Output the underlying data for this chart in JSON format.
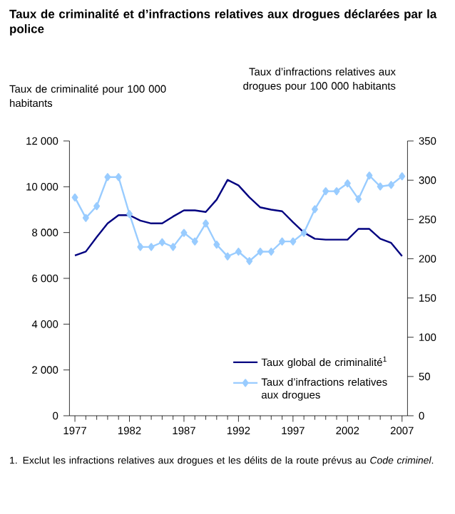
{
  "chart_data": {
    "type": "line",
    "title": "Taux de criminalité et d’infractions relatives aux drogues déclarées par la police",
    "ylabel": "Taux de criminalité pour 100 000 habitants",
    "y2label": "Taux d’infractions relatives aux drogues pour 100 000 habitants",
    "x": [
      1977,
      1978,
      1979,
      1980,
      1981,
      1982,
      1983,
      1984,
      1985,
      1986,
      1987,
      1988,
      1989,
      1990,
      1991,
      1992,
      1993,
      1994,
      1995,
      1996,
      1997,
      1998,
      1999,
      2000,
      2001,
      2002,
      2003,
      2004,
      2005,
      2006,
      2007
    ],
    "xlim": [
      1976.5,
      2007.5
    ],
    "xticks": [
      1977,
      1982,
      1987,
      1992,
      1997,
      2002,
      2007
    ],
    "ylim": [
      0,
      12000
    ],
    "yticks": [
      0,
      {
        "value": 2000,
        "label": "2 000"
      },
      {
        "value": 4000,
        "label": "4 000"
      },
      {
        "value": 6000,
        "label": "6 000"
      },
      {
        "value": 8000,
        "label": "8 000"
      },
      {
        "value": 10000,
        "label": "10 000"
      },
      {
        "value": 12000,
        "label": "12 000"
      }
    ],
    "y2lim": [
      0,
      350
    ],
    "y2ticks": [
      0,
      50,
      100,
      150,
      200,
      250,
      300,
      350
    ],
    "series": [
      {
        "name": "Taux global de criminalité$^{1}$",
        "color": "#000080",
        "marker": "none",
        "values": [
          7000,
          7170,
          7800,
          8400,
          8760,
          8760,
          8520,
          8400,
          8400,
          8700,
          8970,
          8970,
          8900,
          9440,
          10300,
          10060,
          9540,
          9100,
          9000,
          8930,
          8450,
          8000,
          7730,
          7690,
          7690,
          7690,
          8160,
          8160,
          7730,
          7550,
          6970
        ]
      },
      {
        "name": "Taux d’infractions relatives aux drogues",
        "color": "#99ccff",
        "marker": "diamond",
        "axis": "y2",
        "values": [
          278,
          252,
          267,
          304,
          304,
          257,
          215,
          215,
          221,
          215,
          233,
          222,
          245,
          218,
          203,
          209,
          197,
          209,
          209,
          222,
          222,
          233,
          263,
          286,
          286,
          296,
          276,
          306,
          292,
          294,
          305
        ]
      }
    ],
    "grid": false,
    "legend": "bottom right",
    "annotations": [
      "1.  Exclut les infractions relatives aux drogues et les délits de la route prévus au *Code criminel*."
    ]
  }
}
